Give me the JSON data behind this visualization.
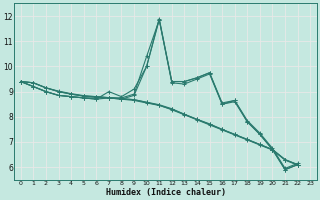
{
  "xlabel": "Humidex (Indice chaleur)",
  "bg_color": "#c5e8e0",
  "grid_color": "#f0f0f0",
  "line_color": "#2a7a6e",
  "xlim": [
    -0.5,
    23.5
  ],
  "ylim": [
    5.5,
    12.5
  ],
  "yticks": [
    6,
    7,
    8,
    9,
    10,
    11,
    12
  ],
  "xticks": [
    0,
    1,
    2,
    3,
    4,
    5,
    6,
    7,
    8,
    9,
    10,
    11,
    12,
    13,
    14,
    15,
    16,
    17,
    18,
    19,
    20,
    21,
    22,
    23
  ],
  "lines": [
    {
      "x": [
        0,
        1,
        2,
        3,
        4,
        5,
        6,
        7,
        8,
        9,
        10,
        11,
        12,
        13,
        14,
        15,
        16,
        17,
        18,
        19,
        20,
        21,
        22
      ],
      "y": [
        9.4,
        9.2,
        9.0,
        8.85,
        8.8,
        8.75,
        8.7,
        9.0,
        8.8,
        9.1,
        10.0,
        11.9,
        9.4,
        9.4,
        9.55,
        9.75,
        8.5,
        8.65,
        7.8,
        7.3,
        6.7,
        5.9,
        6.1
      ]
    },
    {
      "x": [
        0,
        1,
        2,
        3,
        4,
        5,
        6,
        7,
        8,
        9,
        10,
        11,
        12,
        13,
        14,
        15,
        16,
        17,
        18,
        19,
        20,
        21,
        22
      ],
      "y": [
        9.4,
        9.2,
        9.0,
        8.85,
        8.8,
        8.75,
        8.75,
        8.75,
        8.75,
        8.9,
        10.4,
        11.85,
        9.4,
        9.4,
        9.55,
        9.75,
        8.55,
        8.65,
        7.85,
        7.35,
        6.75,
        5.95,
        6.15
      ]
    },
    {
      "x": [
        0,
        1,
        2,
        3,
        4,
        5,
        6,
        7,
        8,
        9,
        10,
        11,
        12,
        13,
        14,
        15,
        16,
        17,
        18,
        19,
        20,
        21,
        22
      ],
      "y": [
        9.4,
        9.2,
        9.0,
        8.85,
        8.8,
        8.75,
        8.7,
        8.75,
        8.7,
        8.85,
        10.0,
        11.85,
        9.35,
        9.3,
        9.5,
        9.7,
        8.5,
        8.6,
        7.8,
        7.3,
        6.7,
        5.9,
        6.1
      ]
    },
    {
      "x": [
        0,
        1,
        2,
        3,
        4,
        5,
        6,
        7,
        8,
        9,
        10,
        11,
        12,
        13,
        14,
        15,
        16,
        17,
        18,
        19,
        20,
        21,
        22
      ],
      "y": [
        9.4,
        9.35,
        9.15,
        9.0,
        8.9,
        8.82,
        8.78,
        8.75,
        8.7,
        8.65,
        8.55,
        8.45,
        8.3,
        8.1,
        7.9,
        7.7,
        7.5,
        7.3,
        7.1,
        6.9,
        6.7,
        6.3,
        6.1
      ]
    },
    {
      "x": [
        0,
        1,
        2,
        3,
        4,
        5,
        6,
        7,
        8,
        9,
        10,
        11,
        12,
        13,
        14,
        15,
        16,
        17,
        18,
        19,
        20,
        21,
        22
      ],
      "y": [
        9.4,
        9.35,
        9.15,
        9.0,
        8.9,
        8.82,
        8.8,
        8.76,
        8.72,
        8.68,
        8.58,
        8.48,
        8.32,
        8.1,
        7.9,
        7.72,
        7.5,
        7.3,
        7.1,
        6.9,
        6.7,
        6.3,
        6.1
      ]
    },
    {
      "x": [
        0,
        1,
        2,
        3,
        4,
        5,
        6,
        7,
        8,
        9,
        10,
        11,
        12,
        13,
        14,
        15,
        16,
        17,
        18,
        19,
        20,
        21,
        22
      ],
      "y": [
        9.4,
        9.35,
        9.15,
        9.02,
        8.92,
        8.84,
        8.8,
        8.76,
        8.72,
        8.68,
        8.57,
        8.46,
        8.28,
        8.08,
        7.88,
        7.68,
        7.48,
        7.28,
        7.08,
        6.88,
        6.68,
        6.28,
        6.08
      ]
    }
  ]
}
